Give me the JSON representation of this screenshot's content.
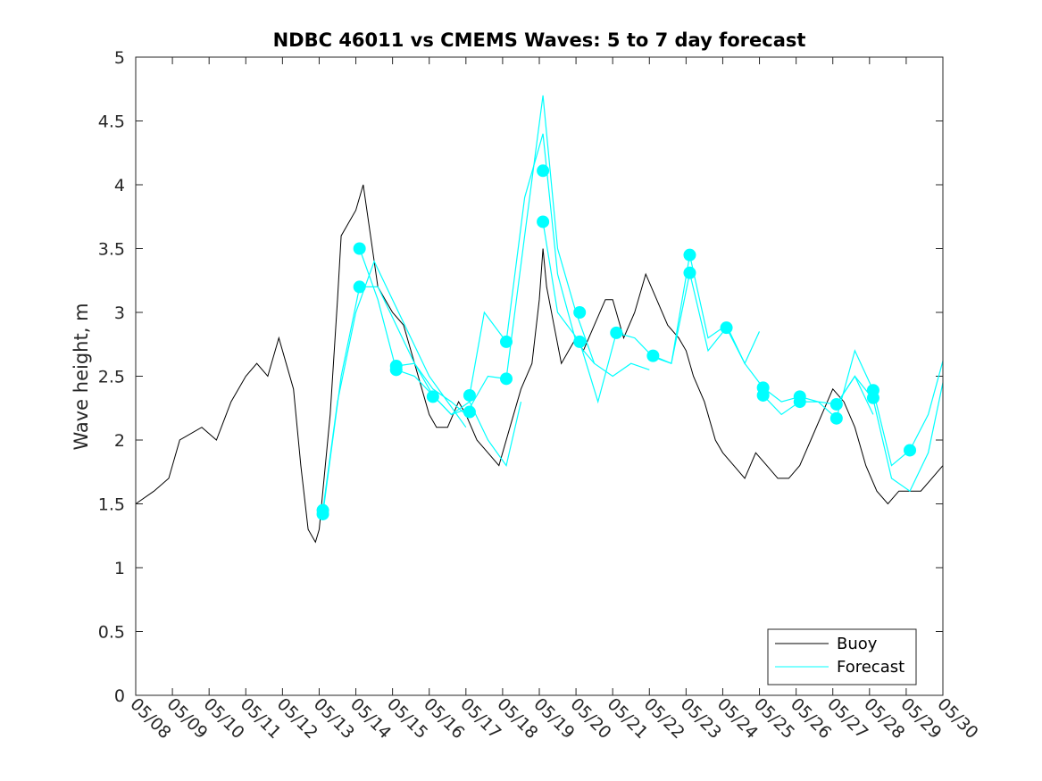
{
  "chart_data": {
    "type": "line",
    "title": "NDBC 46011 vs CMEMS Waves: 5 to 7 day forecast",
    "xlabel": "",
    "ylabel": "Wave height, m",
    "xlim": [
      "05/08",
      "05/30"
    ],
    "ylim": [
      0,
      5
    ],
    "yticks": [
      "0",
      "0.5",
      "1",
      "1.5",
      "2",
      "2.5",
      "3",
      "3.5",
      "4",
      "4.5",
      "5"
    ],
    "xticks": [
      "05/08",
      "05/09",
      "05/10",
      "05/11",
      "05/12",
      "05/13",
      "05/14",
      "05/15",
      "05/16",
      "05/17",
      "05/18",
      "05/19",
      "05/20",
      "05/21",
      "05/22",
      "05/23",
      "05/24",
      "05/25",
      "05/26",
      "05/27",
      "05/28",
      "05/29",
      "05/30"
    ],
    "legend": {
      "placement": "bottom-right",
      "entries": [
        "Buoy",
        "Forecast"
      ]
    },
    "colors": {
      "buoy": "#000000",
      "forecast": "#00ffff",
      "axis": "#262626"
    },
    "series": [
      {
        "name": "Buoy",
        "x_days": [
          0,
          0.5,
          0.9,
          1.2,
          1.8,
          2.2,
          2.6,
          3.0,
          3.3,
          3.6,
          3.9,
          4.1,
          4.3,
          4.5,
          4.7,
          4.9,
          5.0,
          5.1,
          5.3,
          5.5,
          5.6,
          5.8,
          6.0,
          6.2,
          6.4,
          6.6,
          6.8,
          7.0,
          7.3,
          7.6,
          7.8,
          8.0,
          8.2,
          8.5,
          8.8,
          9.0,
          9.3,
          9.6,
          9.9,
          10.2,
          10.5,
          10.8,
          11.0,
          11.1,
          11.2,
          11.4,
          11.6,
          11.8,
          12.0,
          12.2,
          12.5,
          12.8,
          13.0,
          13.3,
          13.6,
          13.9,
          14.2,
          14.5,
          14.8,
          15.0,
          15.2,
          15.5,
          15.8,
          16.0,
          16.3,
          16.6,
          16.9,
          17.2,
          17.5,
          17.8,
          18.1,
          18.4,
          18.7,
          19.0,
          19.3,
          19.6,
          19.9,
          20.2,
          20.5,
          20.8,
          21.1,
          21.4,
          21.7,
          22.0
        ],
        "values": [
          1.5,
          1.6,
          1.7,
          2.0,
          2.1,
          2.0,
          2.3,
          2.5,
          2.6,
          2.5,
          2.8,
          2.6,
          2.4,
          1.8,
          1.3,
          1.2,
          1.3,
          1.6,
          2.2,
          3.1,
          3.6,
          3.7,
          3.8,
          4.0,
          3.6,
          3.2,
          3.1,
          3.0,
          2.9,
          2.6,
          2.4,
          2.2,
          2.1,
          2.1,
          2.3,
          2.2,
          2.0,
          1.9,
          1.8,
          2.1,
          2.4,
          2.6,
          3.1,
          3.5,
          3.2,
          2.9,
          2.6,
          2.7,
          2.8,
          2.7,
          2.9,
          3.1,
          3.1,
          2.8,
          3.0,
          3.3,
          3.1,
          2.9,
          2.8,
          2.7,
          2.5,
          2.3,
          2.0,
          1.9,
          1.8,
          1.7,
          1.9,
          1.8,
          1.7,
          1.7,
          1.8,
          2.0,
          2.2,
          2.4,
          2.3,
          2.1,
          1.8,
          1.6,
          1.5,
          1.6,
          1.6,
          1.6,
          1.7,
          1.8
        ]
      },
      {
        "name": "Forecast",
        "runs": [
          {
            "x_days": [
              5.1,
              5.5,
              6.0,
              6.5,
              7.0,
              7.5,
              8.0,
              8.5,
              9.0
            ],
            "values": [
              1.45,
              2.3,
              3.0,
              3.4,
              3.1,
              2.8,
              2.5,
              2.3,
              2.1
            ]
          },
          {
            "x_days": [
              5.1,
              5.6,
              6.1,
              6.6,
              7.1,
              7.6,
              8.1,
              8.6,
              9.0
            ],
            "values": [
              1.42,
              2.5,
              3.2,
              3.2,
              2.9,
              2.6,
              2.4,
              2.3,
              2.2
            ]
          },
          {
            "x_days": [
              6.1,
              6.6,
              7.1,
              7.6,
              8.1,
              8.6,
              9.1,
              9.6,
              10.1,
              10.5
            ],
            "values": [
              3.5,
              3.1,
              2.55,
              2.5,
              2.35,
              2.2,
              2.3,
              2.0,
              1.8,
              2.3
            ]
          },
          {
            "x_days": [
              7.1,
              7.6,
              8.1,
              8.6,
              9.1,
              9.6,
              10.1,
              10.6,
              11.1,
              11.5,
              12.0,
              12.5
            ],
            "values": [
              2.58,
              2.6,
              2.35,
              2.2,
              2.25,
              2.5,
              2.48,
              3.6,
              4.7,
              3.5,
              3.0,
              2.6
            ]
          },
          {
            "x_days": [
              9.1,
              9.5,
              10.1,
              10.6,
              11.1,
              11.5,
              12.0,
              12.5,
              13.0,
              13.5,
              14.0
            ],
            "values": [
              2.35,
              3.0,
              2.77,
              3.9,
              4.4,
              3.3,
              2.77,
              2.6,
              2.5,
              2.6,
              2.55
            ]
          },
          {
            "x_days": [
              11.1,
              11.5,
              12.1,
              12.6,
              13.1,
              13.6,
              14.1,
              14.6,
              15.1,
              15.6,
              16.1,
              16.6,
              17.0
            ],
            "values": [
              3.71,
              3.0,
              2.77,
              2.3,
              2.84,
              2.8,
              2.65,
              2.6,
              3.31,
              2.7,
              2.88,
              2.6,
              2.85
            ]
          },
          {
            "x_days": [
              14.1,
              14.6,
              15.1,
              15.6,
              16.1,
              16.6,
              17.1,
              17.6,
              18.1,
              18.6,
              19.1,
              19.6,
              20.1
            ],
            "values": [
              2.66,
              2.6,
              3.45,
              2.8,
              2.9,
              2.6,
              2.41,
              2.3,
              2.34,
              2.3,
              2.28,
              2.5,
              2.2
            ]
          },
          {
            "x_days": [
              17.1,
              17.6,
              18.1,
              18.6,
              19.1,
              19.6,
              20.1,
              20.6,
              21.1,
              21.6,
              22.0
            ],
            "values": [
              2.35,
              2.2,
              2.3,
              2.3,
              2.17,
              2.7,
              2.39,
              1.8,
              1.92,
              2.2,
              2.62
            ]
          },
          {
            "x_days": [
              19.1,
              19.6,
              20.1,
              20.6,
              21.1,
              21.6,
              22.0
            ],
            "values": [
              2.28,
              2.5,
              2.32,
              1.7,
              1.6,
              1.9,
              2.45
            ]
          }
        ],
        "markers": {
          "x_days": [
            5.1,
            5.1,
            6.1,
            6.1,
            7.1,
            7.1,
            8.1,
            9.1,
            9.1,
            10.1,
            10.1,
            11.1,
            11.1,
            12.1,
            12.1,
            13.1,
            14.1,
            15.1,
            15.1,
            16.1,
            17.1,
            17.1,
            18.1,
            18.1,
            19.1,
            19.1,
            20.1,
            20.1,
            21.1
          ],
          "values": [
            1.45,
            1.42,
            3.5,
            3.2,
            2.58,
            2.55,
            2.34,
            2.35,
            2.22,
            2.77,
            2.48,
            4.11,
            3.71,
            3.0,
            2.77,
            2.84,
            2.66,
            3.45,
            3.31,
            2.88,
            2.41,
            2.35,
            2.34,
            2.3,
            2.28,
            2.17,
            2.39,
            2.33,
            1.92
          ]
        }
      }
    ]
  }
}
